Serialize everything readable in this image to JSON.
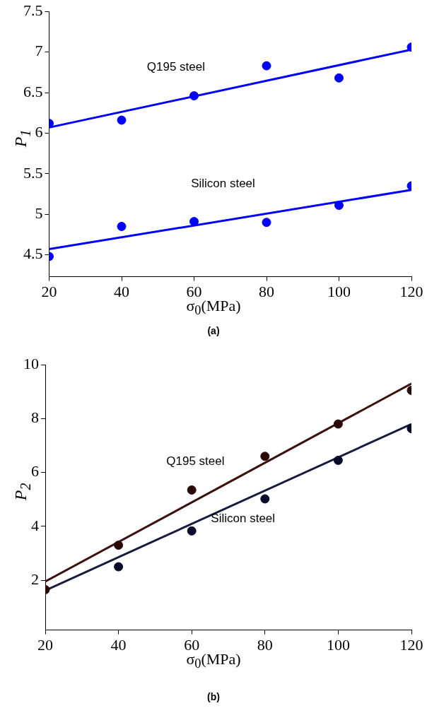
{
  "chart_data": [
    {
      "type": "scatter",
      "title": "(a)",
      "xlabel": "σ$_{0}$(MPa)",
      "ylabel": "P$_{1}$",
      "x": [
        20,
        40,
        60,
        80,
        100,
        120
      ],
      "xlim": [
        20,
        120
      ],
      "xticks": [
        20,
        40,
        60,
        80,
        100,
        120
      ],
      "ylim": [
        4.23,
        7.5
      ],
      "yticks": [
        4.5,
        5,
        5.5,
        6,
        6.5,
        7,
        7.5
      ],
      "grid": false,
      "legend": false,
      "marker": "circle",
      "series": [
        {
          "name": "Q195 steel",
          "color": "#0000ff",
          "values": [
            6.12,
            6.16,
            6.46,
            6.83,
            6.68,
            7.06
          ]
        },
        {
          "type": "line",
          "marker": "none",
          "color": "#0000ff",
          "values": [
            6.07,
            null,
            null,
            null,
            null,
            7.03
          ]
        },
        {
          "name": "Silicon steel",
          "color": "#0000ff",
          "values": [
            4.48,
            4.85,
            4.91,
            4.9,
            5.11,
            5.35
          ]
        },
        {
          "type": "line",
          "marker": "none",
          "color": "#0000ff",
          "values": [
            4.57,
            null,
            null,
            null,
            null,
            5.3
          ]
        }
      ]
    },
    {
      "type": "scatter",
      "title": "(b)",
      "xlabel": "σ$_{0}$(MPa)",
      "ylabel": "P$_{2}$",
      "x": [
        20,
        40,
        60,
        80,
        100,
        120
      ],
      "xlim": [
        20,
        120
      ],
      "xticks": [
        20,
        40,
        60,
        80,
        100,
        120
      ],
      "ylim": [
        0.15,
        10
      ],
      "yticks": [
        2,
        4,
        6,
        8,
        10
      ],
      "grid": false,
      "legend": false,
      "marker": "circle",
      "series": [
        {
          "name": "Q195 steel",
          "color": "#2a0808",
          "values": [
            1.65,
            3.3,
            5.35,
            6.6,
            7.8,
            9.05
          ]
        },
        {
          "type": "line",
          "marker": "none",
          "color": "#3a1010",
          "values": [
            1.95,
            null,
            null,
            null,
            null,
            9.3
          ]
        },
        {
          "name": "Silicon steel",
          "color": "#0a0a2a",
          "values": [
            null,
            2.5,
            3.83,
            5.02,
            6.45,
            7.63
          ]
        },
        {
          "type": "line",
          "marker": "none",
          "color": "#1a1a40",
          "values": [
            1.62,
            null,
            null,
            null,
            null,
            7.8
          ]
        }
      ]
    }
  ]
}
